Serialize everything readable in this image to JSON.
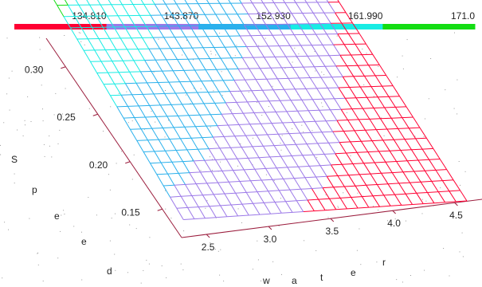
{
  "chart_data": {
    "type": "surface-3d",
    "title": "",
    "legend": {
      "placement": "top",
      "labels": [
        "134.810",
        "143.870",
        "152.930",
        "161.990",
        "171.0"
      ],
      "bands": [
        {
          "from": 134.81,
          "to": 143.87,
          "color": "#ff0033"
        },
        {
          "from": 143.87,
          "to": 152.93,
          "color": "#9c79e8"
        },
        {
          "from": 152.93,
          "to": 161.99,
          "color": "#2ab0ec"
        },
        {
          "from": 161.99,
          "to": 171.0,
          "color": "#18ece4"
        },
        {
          "from": 171.0,
          "to": 180.0,
          "color": "#13dd13"
        }
      ]
    },
    "axes": {
      "x": {
        "label_letters": [
          "w",
          "a",
          "t",
          "e",
          "r"
        ],
        "range": [
          2.3,
          4.6
        ],
        "ticks": [
          "2.5",
          "3.0",
          "3.5",
          "4.0",
          "4.5"
        ],
        "tick_values": [
          2.5,
          3.0,
          3.5,
          4.0,
          4.5
        ]
      },
      "y": {
        "label_letters": [
          "S",
          "p",
          "e",
          "e",
          "d"
        ],
        "range": [
          0.12,
          0.33
        ],
        "ticks": [
          "0.15",
          "0.20",
          "0.25",
          "0.30"
        ],
        "tick_values": [
          0.15,
          0.2,
          0.25,
          0.3
        ]
      },
      "z": {
        "range": [
          134.81,
          171.0
        ]
      }
    },
    "surface": {
      "grid_rows": 20,
      "grid_cols": 26,
      "corner_values": {
        "front_left": 150.5,
        "front_right": 134.8,
        "back_left": 173.5,
        "back_right": 143.5
      }
    }
  }
}
